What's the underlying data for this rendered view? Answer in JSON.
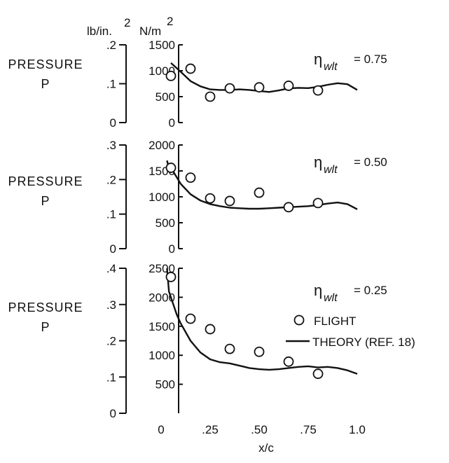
{
  "units": {
    "psi": "lb/in.",
    "psi_exp": "2",
    "nm": "N/m",
    "nm_exp": "2"
  },
  "chart_data": [
    {
      "type": "line",
      "ylabel_line1": "PRESSURE",
      "ylabel_line2": "P",
      "eta_symbol": "η",
      "eta_subscript": "wlt",
      "eta_value": " = 0.75",
      "ylim_nm": [
        0,
        1500
      ],
      "ylim_psi": [
        0,
        0.2
      ],
      "yticks_nm": [
        {
          "v": 0,
          "label": "0"
        },
        {
          "v": 500,
          "label": "500"
        },
        {
          "v": 1000,
          "label": "1000"
        },
        {
          "v": 1500,
          "label": "1500"
        }
      ],
      "yticks_psi": [
        {
          "v": 0,
          "label": "0"
        },
        {
          "v": 0.1,
          "label": ".1"
        },
        {
          "v": 0.2,
          "label": ".2"
        }
      ],
      "series": [
        {
          "name": "FLIGHT",
          "kind": "points",
          "x": [
            0.05,
            0.15,
            0.25,
            0.35,
            0.5,
            0.65,
            0.8
          ],
          "y": [
            900,
            1040,
            500,
            660,
            680,
            710,
            620
          ]
        },
        {
          "name": "THEORY (REF. 18)",
          "kind": "line",
          "x": [
            0.05,
            0.1,
            0.15,
            0.2,
            0.25,
            0.3,
            0.35,
            0.4,
            0.45,
            0.5,
            0.55,
            0.6,
            0.65,
            0.7,
            0.75,
            0.8,
            0.85,
            0.9,
            0.95,
            1.0
          ],
          "y": [
            1150,
            980,
            800,
            700,
            640,
            630,
            630,
            640,
            630,
            610,
            590,
            620,
            660,
            670,
            665,
            690,
            730,
            760,
            740,
            630
          ]
        }
      ]
    },
    {
      "type": "line",
      "ylabel_line1": "PRESSURE",
      "ylabel_line2": "P",
      "eta_symbol": "η",
      "eta_subscript": "wlt",
      "eta_value": " = 0.50",
      "ylim_nm": [
        0,
        2000
      ],
      "ylim_psi": [
        0,
        0.3
      ],
      "yticks_nm": [
        {
          "v": 0,
          "label": "0"
        },
        {
          "v": 500,
          "label": "500"
        },
        {
          "v": 1000,
          "label": "1000"
        },
        {
          "v": 1500,
          "label": "1500"
        },
        {
          "v": 2000,
          "label": "2000"
        }
      ],
      "yticks_psi": [
        {
          "v": 0,
          "label": "0"
        },
        {
          "v": 0.1,
          "label": ".1"
        },
        {
          "v": 0.2,
          "label": ".2"
        },
        {
          "v": 0.3,
          "label": ".3"
        }
      ],
      "series": [
        {
          "name": "FLIGHT",
          "kind": "points",
          "x": [
            0.05,
            0.15,
            0.25,
            0.35,
            0.5,
            0.65,
            0.8
          ],
          "y": [
            1560,
            1370,
            970,
            920,
            1080,
            800,
            880
          ]
        },
        {
          "name": "THEORY (REF. 18)",
          "kind": "line",
          "x": [
            0.03,
            0.04,
            0.06,
            0.1,
            0.15,
            0.2,
            0.25,
            0.3,
            0.35,
            0.4,
            0.45,
            0.5,
            0.55,
            0.6,
            0.65,
            0.7,
            0.75,
            0.8,
            0.85,
            0.9,
            0.95,
            1.0
          ],
          "y": [
            1700,
            1550,
            1500,
            1250,
            1050,
            930,
            860,
            820,
            790,
            780,
            770,
            770,
            780,
            790,
            800,
            810,
            820,
            840,
            870,
            890,
            860,
            760
          ]
        }
      ]
    },
    {
      "type": "line",
      "ylabel_line1": "PRESSURE",
      "ylabel_line2": "P",
      "eta_symbol": "η",
      "eta_subscript": "wlt",
      "eta_value": " = 0.25",
      "ylim_nm": [
        0,
        2500
      ],
      "ylim_psi": [
        0,
        0.4
      ],
      "yticks_nm": [
        {
          "v": 500,
          "label": "500"
        },
        {
          "v": 1000,
          "label": "1000"
        },
        {
          "v": 1500,
          "label": "1500"
        },
        {
          "v": 2000,
          "label": "2000"
        },
        {
          "v": 2500,
          "label": "2500"
        }
      ],
      "yticks_psi": [
        {
          "v": 0,
          "label": "0"
        },
        {
          "v": 0.1,
          "label": ".1"
        },
        {
          "v": 0.2,
          "label": ".2"
        },
        {
          "v": 0.3,
          "label": ".3"
        },
        {
          "v": 0.4,
          "label": ".4"
        }
      ],
      "legend": [
        {
          "marker": "circle",
          "label": "FLIGHT"
        },
        {
          "marker": "line",
          "label": "THEORY (REF. 18)"
        }
      ],
      "series": [
        {
          "name": "FLIGHT",
          "kind": "points",
          "x": [
            0.05,
            0.15,
            0.25,
            0.35,
            0.5,
            0.65,
            0.8
          ],
          "y": [
            2350,
            1630,
            1450,
            1110,
            1060,
            890,
            680
          ]
        },
        {
          "name": "THEORY (REF. 18)",
          "kind": "line",
          "x": [
            0.03,
            0.04,
            0.06,
            0.08,
            0.1,
            0.15,
            0.2,
            0.25,
            0.3,
            0.35,
            0.4,
            0.45,
            0.5,
            0.55,
            0.6,
            0.65,
            0.7,
            0.75,
            0.8,
            0.85,
            0.9,
            0.95,
            1.0
          ],
          "y": [
            2500,
            2100,
            1900,
            1700,
            1550,
            1250,
            1050,
            930,
            880,
            860,
            820,
            780,
            760,
            750,
            760,
            780,
            800,
            810,
            790,
            800,
            780,
            740,
            680
          ]
        }
      ],
      "xticks": [
        {
          "v": 0,
          "label": "0"
        },
        {
          "v": 0.25,
          "label": ".25"
        },
        {
          "v": 0.5,
          "label": ".50"
        },
        {
          "v": 0.75,
          "label": ".75"
        },
        {
          "v": 1.0,
          "label": "1.0"
        }
      ],
      "xlabel": "x/c",
      "xlim": [
        0,
        1.0
      ]
    }
  ]
}
